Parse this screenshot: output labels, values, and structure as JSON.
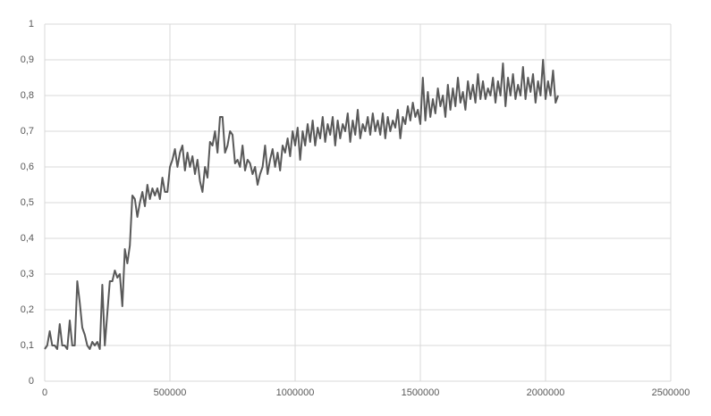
{
  "chart_data": {
    "type": "line",
    "color": "#595959",
    "grid": true,
    "xlim": [
      0,
      2500000
    ],
    "xticks": [
      0,
      500000,
      1000000,
      1500000,
      2000000,
      2500000
    ],
    "ylim": [
      0,
      1
    ],
    "yticks": [
      0,
      {
        "value": 0.1,
        "label": "0,1"
      },
      {
        "value": 0.2,
        "label": "0,2"
      },
      {
        "value": 0.3,
        "label": "0,3"
      },
      {
        "value": 0.4,
        "label": "0,4"
      },
      {
        "value": 0.5,
        "label": "0,5"
      },
      {
        "value": 0.6,
        "label": "0,6"
      },
      {
        "value": 0.7,
        "label": "0,7"
      },
      {
        "value": 0.8,
        "label": "0,8"
      },
      {
        "value": 0.9,
        "label": "0,9"
      },
      1
    ],
    "x": [
      0,
      10000,
      20000,
      30000,
      40000,
      50000,
      60000,
      70000,
      80000,
      90000,
      100000,
      110000,
      120000,
      130000,
      140000,
      150000,
      160000,
      170000,
      180000,
      190000,
      200000,
      210000,
      220000,
      230000,
      240000,
      250000,
      260000,
      270000,
      280000,
      290000,
      300000,
      310000,
      320000,
      330000,
      340000,
      350000,
      360000,
      370000,
      380000,
      390000,
      400000,
      410000,
      420000,
      430000,
      440000,
      450000,
      460000,
      470000,
      480000,
      490000,
      500000,
      510000,
      520000,
      530000,
      540000,
      550000,
      560000,
      570000,
      580000,
      590000,
      600000,
      610000,
      620000,
      630000,
      640000,
      650000,
      660000,
      670000,
      680000,
      690000,
      700000,
      710000,
      720000,
      730000,
      740000,
      750000,
      760000,
      770000,
      780000,
      790000,
      800000,
      810000,
      820000,
      830000,
      840000,
      850000,
      860000,
      870000,
      880000,
      890000,
      900000,
      910000,
      920000,
      930000,
      940000,
      950000,
      960000,
      970000,
      980000,
      990000,
      1000000,
      1010000,
      1020000,
      1030000,
      1040000,
      1050000,
      1060000,
      1070000,
      1080000,
      1090000,
      1100000,
      1110000,
      1120000,
      1130000,
      1140000,
      1150000,
      1160000,
      1170000,
      1180000,
      1190000,
      1200000,
      1210000,
      1220000,
      1230000,
      1240000,
      1250000,
      1260000,
      1270000,
      1280000,
      1290000,
      1300000,
      1310000,
      1320000,
      1330000,
      1340000,
      1350000,
      1360000,
      1370000,
      1380000,
      1390000,
      1400000,
      1410000,
      1420000,
      1430000,
      1440000,
      1450000,
      1460000,
      1470000,
      1480000,
      1490000,
      1500000,
      1510000,
      1520000,
      1530000,
      1540000,
      1550000,
      1560000,
      1570000,
      1580000,
      1590000,
      1600000,
      1610000,
      1620000,
      1630000,
      1640000,
      1650000,
      1660000,
      1670000,
      1680000,
      1690000,
      1700000,
      1710000,
      1720000,
      1730000,
      1740000,
      1750000,
      1760000,
      1770000,
      1780000,
      1790000,
      1800000,
      1810000,
      1820000,
      1830000,
      1840000,
      1850000,
      1860000,
      1870000,
      1880000,
      1890000,
      1900000,
      1910000,
      1920000,
      1930000,
      1940000,
      1950000,
      1960000,
      1970000,
      1980000,
      1990000,
      2000000,
      2010000,
      2020000,
      2030000,
      2040000,
      2050000
    ],
    "values": [
      0.09,
      0.1,
      0.14,
      0.1,
      0.1,
      0.09,
      0.16,
      0.1,
      0.1,
      0.09,
      0.17,
      0.1,
      0.1,
      0.28,
      0.22,
      0.15,
      0.13,
      0.1,
      0.09,
      0.11,
      0.1,
      0.11,
      0.09,
      0.27,
      0.1,
      0.19,
      0.28,
      0.28,
      0.31,
      0.29,
      0.3,
      0.21,
      0.37,
      0.33,
      0.38,
      0.52,
      0.51,
      0.46,
      0.5,
      0.53,
      0.49,
      0.55,
      0.51,
      0.54,
      0.52,
      0.54,
      0.51,
      0.57,
      0.53,
      0.53,
      0.6,
      0.62,
      0.65,
      0.6,
      0.64,
      0.66,
      0.59,
      0.64,
      0.6,
      0.63,
      0.58,
      0.62,
      0.56,
      0.53,
      0.6,
      0.57,
      0.67,
      0.66,
      0.7,
      0.64,
      0.74,
      0.74,
      0.64,
      0.66,
      0.7,
      0.69,
      0.61,
      0.62,
      0.6,
      0.66,
      0.59,
      0.62,
      0.61,
      0.58,
      0.6,
      0.55,
      0.58,
      0.6,
      0.66,
      0.58,
      0.62,
      0.65,
      0.6,
      0.64,
      0.59,
      0.66,
      0.64,
      0.68,
      0.63,
      0.7,
      0.66,
      0.71,
      0.62,
      0.7,
      0.66,
      0.72,
      0.67,
      0.73,
      0.66,
      0.71,
      0.68,
      0.74,
      0.67,
      0.72,
      0.69,
      0.74,
      0.66,
      0.73,
      0.68,
      0.72,
      0.7,
      0.75,
      0.67,
      0.73,
      0.69,
      0.76,
      0.68,
      0.72,
      0.7,
      0.74,
      0.69,
      0.75,
      0.7,
      0.73,
      0.69,
      0.75,
      0.68,
      0.74,
      0.7,
      0.73,
      0.71,
      0.76,
      0.68,
      0.74,
      0.72,
      0.77,
      0.73,
      0.78,
      0.74,
      0.76,
      0.72,
      0.85,
      0.73,
      0.81,
      0.74,
      0.79,
      0.75,
      0.82,
      0.77,
      0.8,
      0.74,
      0.83,
      0.76,
      0.82,
      0.77,
      0.85,
      0.78,
      0.81,
      0.76,
      0.84,
      0.79,
      0.83,
      0.78,
      0.86,
      0.79,
      0.84,
      0.79,
      0.82,
      0.8,
      0.85,
      0.78,
      0.84,
      0.8,
      0.89,
      0.77,
      0.85,
      0.8,
      0.86,
      0.79,
      0.83,
      0.8,
      0.88,
      0.79,
      0.85,
      0.81,
      0.86,
      0.78,
      0.84,
      0.8,
      0.9,
      0.79,
      0.84,
      0.8,
      0.87,
      0.78,
      0.8
    ]
  }
}
